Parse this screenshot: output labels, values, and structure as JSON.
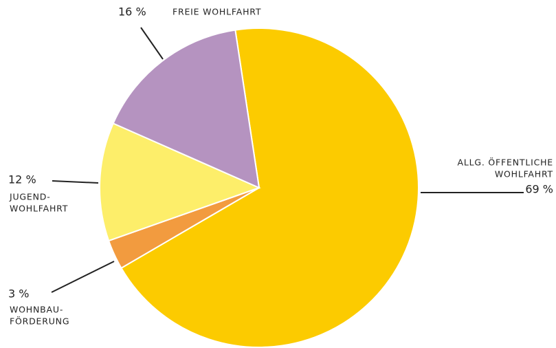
{
  "chart_data": {
    "type": "pie",
    "categories": [
      [
        "ALLG. ÖFFENTLICHE",
        "WOHLFAHRT"
      ],
      [
        "WOHNBAU-",
        "FÖRDERUNG"
      ],
      [
        "JUGEND-",
        "WOHLFAHRT"
      ],
      [
        "FREIE WOHLFAHRT"
      ]
    ],
    "values": [
      69,
      3,
      12,
      16
    ],
    "value_labels": [
      "69 %",
      "3 %",
      "12 %",
      "16 %"
    ],
    "colors": [
      "#fccb00",
      "#f29b3f",
      "#fdee6a",
      "#b593c0"
    ]
  }
}
